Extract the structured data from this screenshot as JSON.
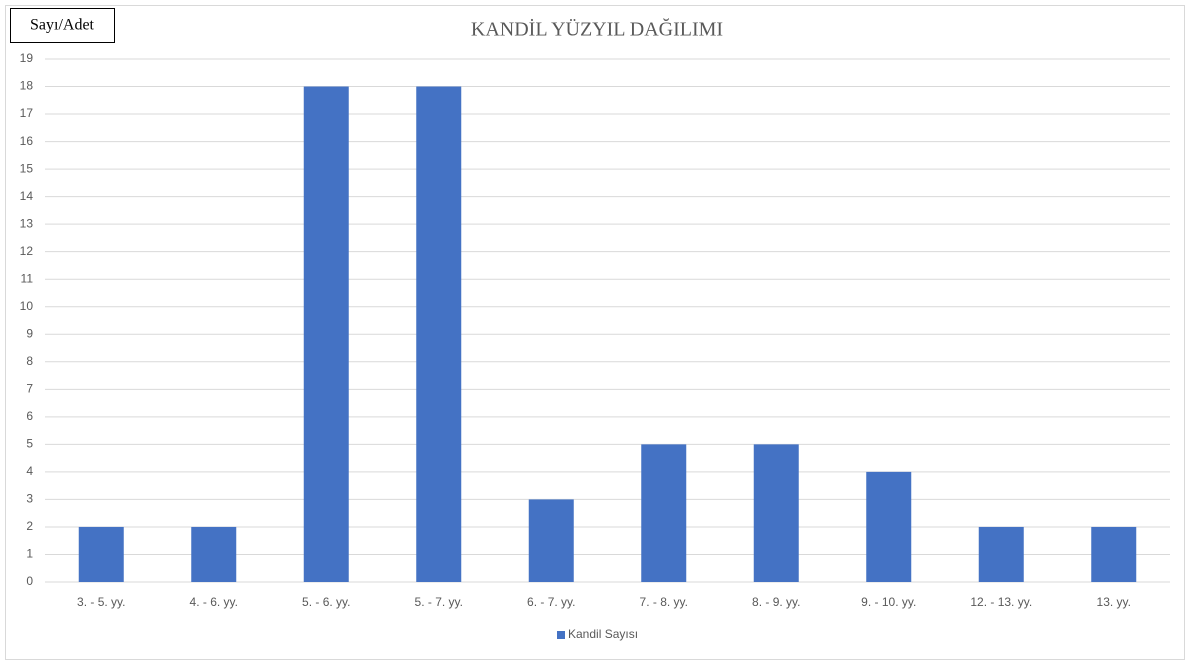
{
  "chart_data": {
    "type": "bar",
    "title": "KANDİL YÜZYIL DAĞILIMI",
    "y_label": "Sayı/Adet",
    "categories": [
      "3. - 5. yy.",
      "4. - 6. yy.",
      "5. - 6. yy.",
      "5. - 7. yy.",
      "6. - 7. yy.",
      "7. - 8. yy.",
      "8. - 9. yy.",
      "9. - 10. yy.",
      "12. - 13. yy.",
      "13. yy."
    ],
    "series": [
      {
        "name": "Kandil Sayısı",
        "color": "#4472c4",
        "values": [
          2,
          2,
          18,
          18,
          3,
          5,
          5,
          4,
          2,
          2
        ]
      }
    ],
    "ylim": [
      0,
      19
    ],
    "yticks": [
      0,
      1,
      2,
      3,
      4,
      5,
      6,
      7,
      8,
      9,
      10,
      11,
      12,
      13,
      14,
      15,
      16,
      17,
      18,
      19
    ],
    "grid": true,
    "legend": "bottom"
  }
}
